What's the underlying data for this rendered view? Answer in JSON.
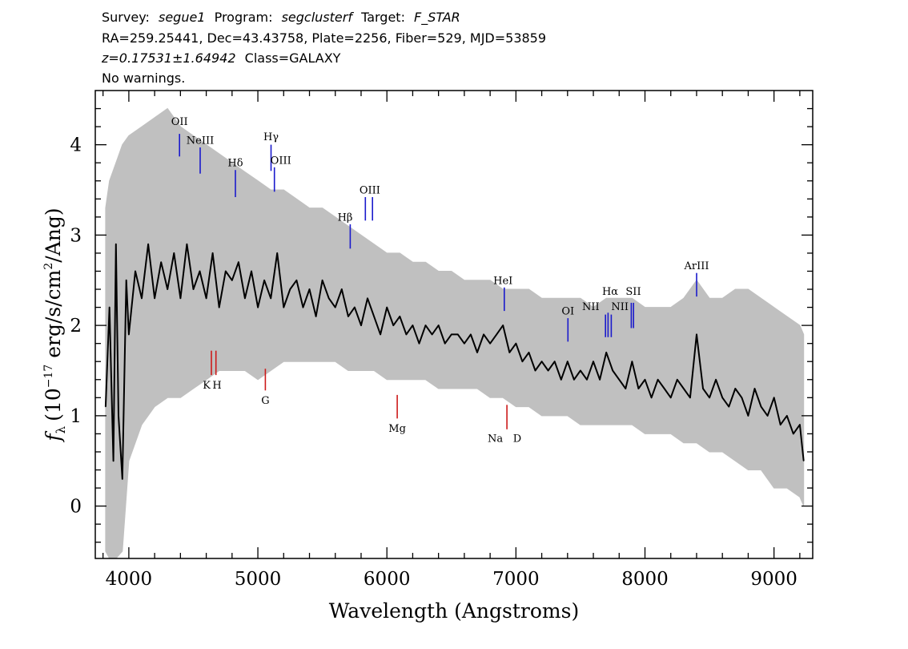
{
  "header": {
    "line1": {
      "survey_label": "Survey:",
      "survey": "segue1",
      "program_label": "Program:",
      "program": "segclusterf",
      "target_label": "Target:",
      "target": "F_STAR"
    },
    "line2": "RA=259.25441, Dec=43.43758, Plate=2256, Fiber=529, MJD=53859",
    "line3": {
      "z": "z=0.17531±1.64942",
      "class": "Class=GALAXY"
    },
    "line4": "No warnings."
  },
  "chart_data": {
    "type": "line",
    "xlabel": "Wavelength (Angstroms)",
    "ylabel": "f_λ (10^-17 erg/s/cm^2/Ang)",
    "ylabel_parts": {
      "symbol": "f",
      "sub": "λ",
      "pre": "(10",
      "exp1": "−17",
      "mid": " erg/s/cm",
      "exp2": "2",
      "post": "/Ang)"
    },
    "xlim": [
      3740,
      9300
    ],
    "ylim": [
      -0.58,
      4.6
    ],
    "x_ticks": [
      4000,
      5000,
      6000,
      7000,
      8000,
      9000
    ],
    "y_ticks": [
      0,
      1,
      2,
      3,
      4
    ],
    "grid": false,
    "series": [
      {
        "role": "error-band",
        "color": "#c0c0c0",
        "x": [
          3820,
          3850,
          3900,
          3950,
          4000,
          4100,
          4200,
          4300,
          4400,
          4500,
          4600,
          4700,
          4800,
          4900,
          5000,
          5100,
          5200,
          5300,
          5400,
          5500,
          5600,
          5700,
          5800,
          5900,
          6000,
          6100,
          6200,
          6300,
          6400,
          6500,
          6600,
          6700,
          6800,
          6900,
          7000,
          7100,
          7200,
          7300,
          7400,
          7500,
          7600,
          7700,
          7800,
          7900,
          8000,
          8100,
          8200,
          8300,
          8400,
          8500,
          8600,
          8700,
          8800,
          8900,
          9000,
          9100,
          9200,
          9230
        ],
        "lower": [
          -0.5,
          -0.6,
          -0.6,
          -0.5,
          0.5,
          0.9,
          1.1,
          1.2,
          1.2,
          1.3,
          1.4,
          1.5,
          1.5,
          1.5,
          1.4,
          1.5,
          1.6,
          1.6,
          1.6,
          1.6,
          1.6,
          1.5,
          1.5,
          1.5,
          1.4,
          1.4,
          1.4,
          1.4,
          1.3,
          1.3,
          1.3,
          1.3,
          1.2,
          1.2,
          1.1,
          1.1,
          1.0,
          1.0,
          1.0,
          0.9,
          0.9,
          0.9,
          0.9,
          0.9,
          0.8,
          0.8,
          0.8,
          0.7,
          0.7,
          0.6,
          0.6,
          0.5,
          0.4,
          0.4,
          0.2,
          0.2,
          0.1,
          0.0
        ],
        "upper": [
          3.3,
          3.6,
          3.8,
          4.0,
          4.1,
          4.2,
          4.3,
          4.4,
          4.2,
          4.1,
          4.0,
          3.9,
          3.8,
          3.7,
          3.6,
          3.5,
          3.5,
          3.4,
          3.3,
          3.3,
          3.2,
          3.1,
          3.0,
          2.9,
          2.8,
          2.8,
          2.7,
          2.7,
          2.6,
          2.6,
          2.5,
          2.5,
          2.5,
          2.4,
          2.4,
          2.4,
          2.3,
          2.3,
          2.3,
          2.3,
          2.2,
          2.3,
          2.3,
          2.3,
          2.2,
          2.2,
          2.2,
          2.3,
          2.5,
          2.3,
          2.3,
          2.4,
          2.4,
          2.3,
          2.2,
          2.1,
          2.0,
          1.9
        ]
      },
      {
        "role": "flux",
        "color": "#000000",
        "x": [
          3820,
          3850,
          3880,
          3900,
          3920,
          3950,
          3980,
          4000,
          4050,
          4100,
          4150,
          4200,
          4250,
          4300,
          4350,
          4400,
          4450,
          4500,
          4550,
          4600,
          4650,
          4700,
          4750,
          4800,
          4850,
          4900,
          4950,
          5000,
          5050,
          5100,
          5150,
          5200,
          5250,
          5300,
          5350,
          5400,
          5450,
          5500,
          5550,
          5600,
          5650,
          5700,
          5750,
          5800,
          5850,
          5900,
          5950,
          6000,
          6050,
          6100,
          6150,
          6200,
          6250,
          6300,
          6350,
          6400,
          6450,
          6500,
          6550,
          6600,
          6650,
          6700,
          6750,
          6800,
          6850,
          6900,
          6950,
          7000,
          7050,
          7100,
          7150,
          7200,
          7250,
          7300,
          7350,
          7400,
          7450,
          7500,
          7550,
          7600,
          7650,
          7700,
          7750,
          7800,
          7850,
          7900,
          7950,
          8000,
          8050,
          8100,
          8150,
          8200,
          8250,
          8300,
          8350,
          8400,
          8450,
          8500,
          8550,
          8600,
          8650,
          8700,
          8750,
          8800,
          8850,
          8900,
          8950,
          9000,
          9050,
          9100,
          9150,
          9200,
          9230
        ],
        "y": [
          1.1,
          2.2,
          0.5,
          2.9,
          1.0,
          0.3,
          2.5,
          1.9,
          2.6,
          2.3,
          2.9,
          2.3,
          2.7,
          2.4,
          2.8,
          2.3,
          2.9,
          2.4,
          2.6,
          2.3,
          2.8,
          2.2,
          2.6,
          2.5,
          2.7,
          2.3,
          2.6,
          2.2,
          2.5,
          2.3,
          2.8,
          2.2,
          2.4,
          2.5,
          2.2,
          2.4,
          2.1,
          2.5,
          2.3,
          2.2,
          2.4,
          2.1,
          2.2,
          2.0,
          2.3,
          2.1,
          1.9,
          2.2,
          2.0,
          2.1,
          1.9,
          2.0,
          1.8,
          2.0,
          1.9,
          2.0,
          1.8,
          1.9,
          1.9,
          1.8,
          1.9,
          1.7,
          1.9,
          1.8,
          1.9,
          2.0,
          1.7,
          1.8,
          1.6,
          1.7,
          1.5,
          1.6,
          1.5,
          1.6,
          1.4,
          1.6,
          1.4,
          1.5,
          1.4,
          1.6,
          1.4,
          1.7,
          1.5,
          1.4,
          1.3,
          1.6,
          1.3,
          1.4,
          1.2,
          1.4,
          1.3,
          1.2,
          1.4,
          1.3,
          1.2,
          1.9,
          1.3,
          1.2,
          1.4,
          1.2,
          1.1,
          1.3,
          1.2,
          1.0,
          1.3,
          1.1,
          1.0,
          1.2,
          0.9,
          1.0,
          0.8,
          0.9,
          0.5
        ]
      }
    ],
    "emission_lines": [
      {
        "label": "OII",
        "x": 4393,
        "y1": 3.87,
        "y2": 4.12,
        "color": "#1a1acc"
      },
      {
        "label": "NeIII",
        "x": 4553,
        "y1": 3.68,
        "y2": 3.97,
        "color": "#1a1acc"
      },
      {
        "label": "Hδ",
        "x": 4826,
        "y1": 3.42,
        "y2": 3.72,
        "color": "#1a1acc"
      },
      {
        "label": "Hγ",
        "x": 5102,
        "y1": 3.71,
        "y2": 4.0,
        "color": "#1a1acc"
      },
      {
        "label": "OIII",
        "x": 5128,
        "y1": 3.48,
        "y2": 3.75,
        "color": "#1a1acc"
      },
      {
        "label": "Hβ",
        "x": 5716,
        "y1": 2.85,
        "y2": 3.12,
        "color": "#1a1acc"
      },
      {
        "label": "OIII",
        "x": 5833,
        "y1": 3.16,
        "y2": 3.42,
        "color": "#1a1acc"
      },
      {
        "label": "OIII",
        "x": 5888,
        "y1": 3.16,
        "y2": 3.42,
        "color": "#1a1acc"
      },
      {
        "label": "HeI",
        "x": 6910,
        "y1": 2.16,
        "y2": 2.42,
        "color": "#1a1acc"
      },
      {
        "label": "OI",
        "x": 7403,
        "y1": 1.82,
        "y2": 2.08,
        "color": "#1a1acc"
      },
      {
        "label": "NII",
        "x": 7694,
        "y1": 1.87,
        "y2": 2.12,
        "color": "#1a1acc"
      },
      {
        "label": "Hα",
        "x": 7714,
        "y1": 1.87,
        "y2": 2.14,
        "color": "#1a1acc"
      },
      {
        "label": "NII",
        "x": 7739,
        "y1": 1.87,
        "y2": 2.12,
        "color": "#1a1acc"
      },
      {
        "label": "SII",
        "x": 7894,
        "y1": 1.97,
        "y2": 2.25,
        "color": "#1a1acc"
      },
      {
        "label": "SII",
        "x": 7911,
        "y1": 1.97,
        "y2": 2.25,
        "color": "#1a1acc"
      },
      {
        "label": "ArIII",
        "x": 8400,
        "y1": 2.32,
        "y2": 2.58,
        "color": "#1a1acc"
      }
    ],
    "emission_label_positions": [
      {
        "text": "OII",
        "x": 4393,
        "y": 4.22
      },
      {
        "text": "NeIII",
        "x": 4553,
        "y": 4.01
      },
      {
        "text": "Hδ",
        "x": 4826,
        "y": 3.76
      },
      {
        "text": "Hγ",
        "x": 5102,
        "y": 4.05
      },
      {
        "text": "OIII",
        "x": 5178,
        "y": 3.79
      },
      {
        "text": "Hβ",
        "x": 5676,
        "y": 3.16
      },
      {
        "text": "OIII",
        "x": 5868,
        "y": 3.46
      },
      {
        "text": "HeI",
        "x": 6900,
        "y": 2.46
      },
      {
        "text": "OI",
        "x": 7403,
        "y": 2.12
      },
      {
        "text": "NII",
        "x": 7580,
        "y": 2.17
      },
      {
        "text": "Hα",
        "x": 7730,
        "y": 2.34
      },
      {
        "text": "NII",
        "x": 7806,
        "y": 2.17
      },
      {
        "text": "SII",
        "x": 7910,
        "y": 2.34
      },
      {
        "text": "ArIII",
        "x": 8400,
        "y": 2.62
      }
    ],
    "absorption_lines": [
      {
        "label": "K",
        "x": 4640,
        "y1": 1.45,
        "y2": 1.72,
        "color": "#cc1a1a"
      },
      {
        "label": "H",
        "x": 4675,
        "y1": 1.45,
        "y2": 1.72,
        "color": "#cc1a1a"
      },
      {
        "label": "G",
        "x": 5058,
        "y1": 1.28,
        "y2": 1.52,
        "color": "#cc1a1a"
      },
      {
        "label": "Mg",
        "x": 6080,
        "y1": 0.97,
        "y2": 1.23,
        "color": "#cc1a1a"
      },
      {
        "label": "Na",
        "x": 6930,
        "y1": 0.85,
        "y2": 1.12,
        "color": "#cc1a1a"
      }
    ],
    "absorption_label_positions": [
      {
        "text": "K",
        "x": 4603,
        "y": 1.3
      },
      {
        "text": "H",
        "x": 4683,
        "y": 1.3
      },
      {
        "text": "G",
        "x": 5058,
        "y": 1.13
      },
      {
        "text": "Mg",
        "x": 6080,
        "y": 0.82
      },
      {
        "text": "Na",
        "x": 6840,
        "y": 0.71
      },
      {
        "text": "D",
        "x": 7010,
        "y": 0.71
      }
    ]
  }
}
